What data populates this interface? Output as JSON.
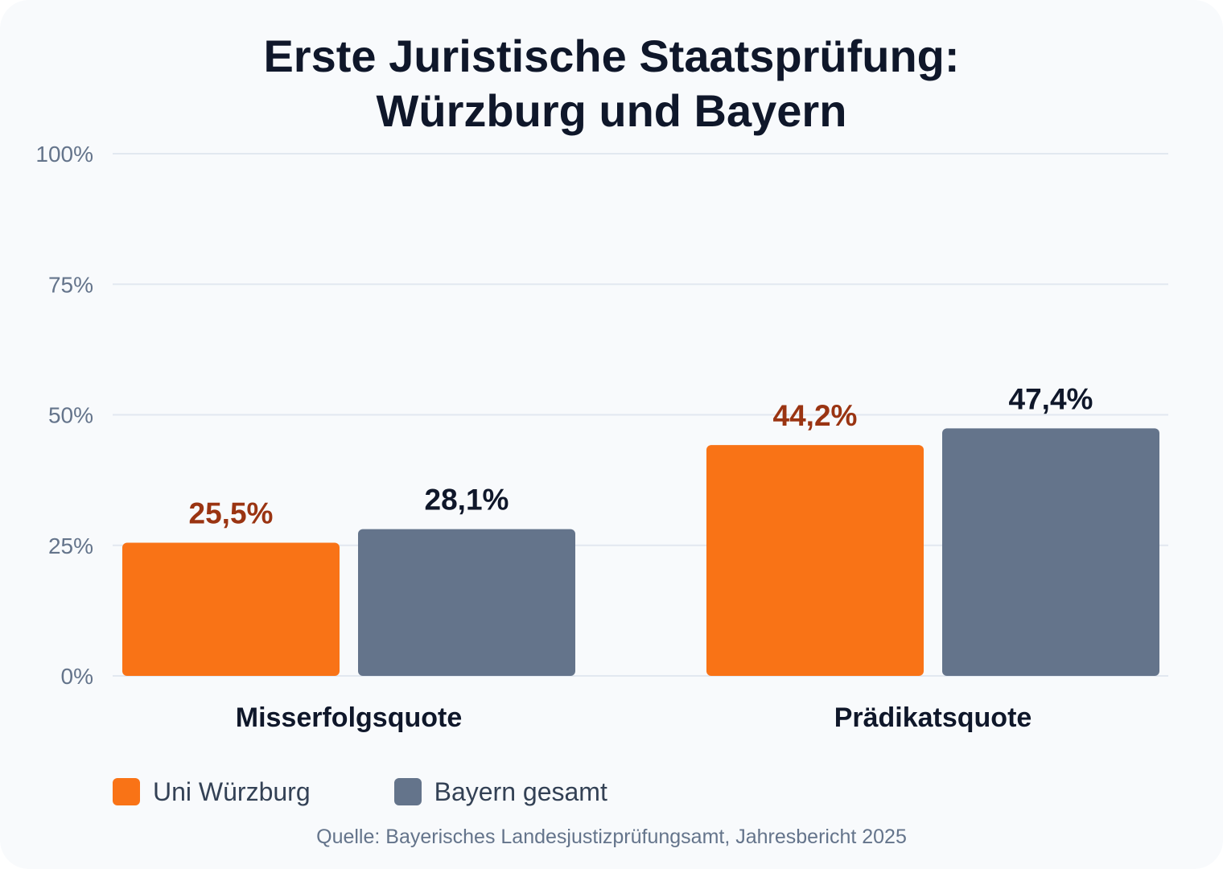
{
  "chart_data": {
    "type": "bar",
    "title": [
      "Erste Juristische Staatsprüfung:",
      "Würzburg und Bayern"
    ],
    "categories": [
      "Misserfolgsquote",
      "Prädikatsquote"
    ],
    "series": [
      {
        "name": "Uni Würzburg",
        "values": [
          25.5,
          44.2
        ],
        "value_labels": [
          "25,5%",
          "44,2%"
        ],
        "color": "#f97316",
        "label_color": "#9a3412"
      },
      {
        "name": "Bayern gesamt",
        "values": [
          28.1,
          47.4
        ],
        "value_labels": [
          "28,1%",
          "47,4%"
        ],
        "color": "#64748b",
        "label_color": "#0f172a"
      }
    ],
    "y_ticks": [
      0,
      25,
      50,
      75,
      100
    ],
    "y_tick_labels": [
      "0%",
      "25%",
      "50%",
      "75%",
      "100%"
    ],
    "ylim": [
      0,
      100
    ],
    "grid": true,
    "legend_position": "bottom-left",
    "source": "Quelle: Bayerisches Landesjustizprüfungsamt, Jahresbericht 2025"
  }
}
